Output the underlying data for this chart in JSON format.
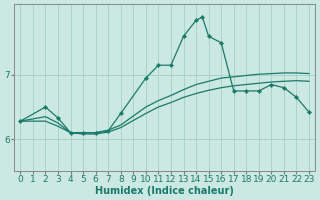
{
  "xlabel": "Humidex (Indice chaleur)",
  "bg_color": "#cce8e2",
  "line_color": "#1a7a6a",
  "grid_color": "#aad4c8",
  "xlim": [
    -0.5,
    23.5
  ],
  "ylim": [
    5.5,
    8.1
  ],
  "xticks": [
    0,
    1,
    2,
    3,
    4,
    5,
    6,
    7,
    8,
    9,
    10,
    11,
    12,
    13,
    14,
    15,
    16,
    17,
    18,
    19,
    20,
    21,
    22,
    23
  ],
  "yticks": [
    6,
    7
  ],
  "series1_x": [
    0,
    2,
    3,
    4,
    5,
    6,
    7,
    8,
    10,
    11,
    12,
    13,
    14,
    14.5,
    15,
    16,
    17,
    18,
    19,
    20,
    21,
    22,
    23
  ],
  "series1_y": [
    6.28,
    6.5,
    6.33,
    6.1,
    6.1,
    6.1,
    6.13,
    6.4,
    6.95,
    7.15,
    7.15,
    7.6,
    7.85,
    7.9,
    7.6,
    7.5,
    6.75,
    6.75,
    6.75,
    6.85,
    6.8,
    6.65,
    6.42
  ],
  "series2_x": [
    0,
    2,
    3,
    4,
    5,
    6,
    7,
    8,
    10,
    11,
    12,
    13,
    14,
    15,
    16,
    17,
    18,
    19,
    20,
    21,
    22,
    23
  ],
  "series2_y": [
    6.28,
    6.35,
    6.25,
    6.1,
    6.1,
    6.1,
    6.14,
    6.22,
    6.5,
    6.6,
    6.68,
    6.77,
    6.85,
    6.9,
    6.95,
    6.97,
    6.99,
    7.01,
    7.02,
    7.03,
    7.03,
    7.02
  ],
  "series3_x": [
    0,
    2,
    3,
    4,
    5,
    6,
    7,
    8,
    10,
    11,
    12,
    13,
    14,
    15,
    16,
    17,
    18,
    19,
    20,
    21,
    22,
    23
  ],
  "series3_y": [
    6.28,
    6.28,
    6.2,
    6.1,
    6.08,
    6.08,
    6.11,
    6.18,
    6.4,
    6.5,
    6.57,
    6.65,
    6.71,
    6.76,
    6.8,
    6.83,
    6.85,
    6.87,
    6.89,
    6.9,
    6.91,
    6.9
  ]
}
